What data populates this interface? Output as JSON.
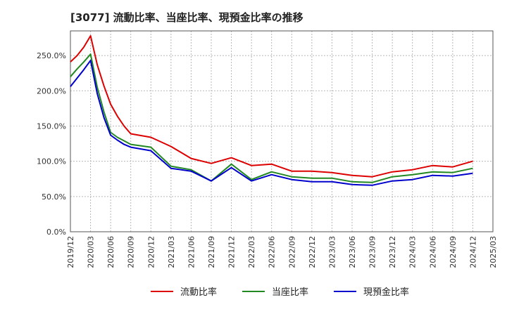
{
  "chart_data": {
    "type": "line",
    "title": "[3077]  流動比率、当座比率、現預金比率の推移",
    "xlabel": "",
    "ylabel": "",
    "ylim": [
      0,
      285
    ],
    "yticks": [
      0,
      50,
      100,
      150,
      200,
      250
    ],
    "ytick_labels": [
      "0.0%",
      "50.0%",
      "100.0%",
      "150.0%",
      "200.0%",
      "250.0%"
    ],
    "xtick_labels": [
      "2019/12",
      "2020/03",
      "2020/06",
      "2020/09",
      "2020/12",
      "2021/03",
      "2021/06",
      "2021/09",
      "2021/12",
      "2022/03",
      "2022/06",
      "2022/09",
      "2022/12",
      "2023/03",
      "2023/06",
      "2023/09",
      "2023/12",
      "2024/03",
      "2024/06",
      "2024/09",
      "2024/12",
      "2025/03"
    ],
    "x": [
      "2019/12",
      "2020/01",
      "2020/02",
      "2020/03",
      "2020/04",
      "2020/05",
      "2020/06",
      "2020/07",
      "2020/08",
      "2020/09",
      "2020/12",
      "2021/03",
      "2021/06",
      "2021/09",
      "2021/12",
      "2022/03",
      "2022/06",
      "2022/09",
      "2022/12",
      "2023/03",
      "2023/06",
      "2023/09",
      "2023/12",
      "2024/03",
      "2024/06",
      "2024/09",
      "2024/12"
    ],
    "series": [
      {
        "name": "流動比率",
        "color": "#dd0000",
        "values": [
          241,
          250,
          262,
          278,
          237,
          207,
          181,
          164,
          150,
          139,
          134,
          121,
          104,
          97,
          105,
          94,
          96,
          86,
          86,
          84,
          80,
          78,
          85,
          88,
          94,
          92,
          100
        ]
      },
      {
        "name": "当座比率",
        "color": "#228822",
        "values": [
          220,
          231,
          241,
          252,
          205,
          170,
          141,
          134,
          129,
          124,
          120,
          93,
          88,
          72,
          96,
          74,
          85,
          78,
          76,
          76,
          71,
          70,
          78,
          81,
          85,
          84,
          90
        ]
      },
      {
        "name": "現預金比率",
        "color": "#0000cc",
        "values": [
          206,
          218,
          230,
          243,
          196,
          162,
          137,
          130,
          124,
          120,
          115,
          90,
          86,
          72,
          91,
          72,
          81,
          74,
          71,
          71,
          67,
          66,
          72,
          74,
          80,
          79,
          83
        ]
      }
    ],
    "legend": {
      "position": "bottom",
      "labels": [
        "流動比率",
        "当座比率",
        "現預金比率"
      ]
    }
  }
}
